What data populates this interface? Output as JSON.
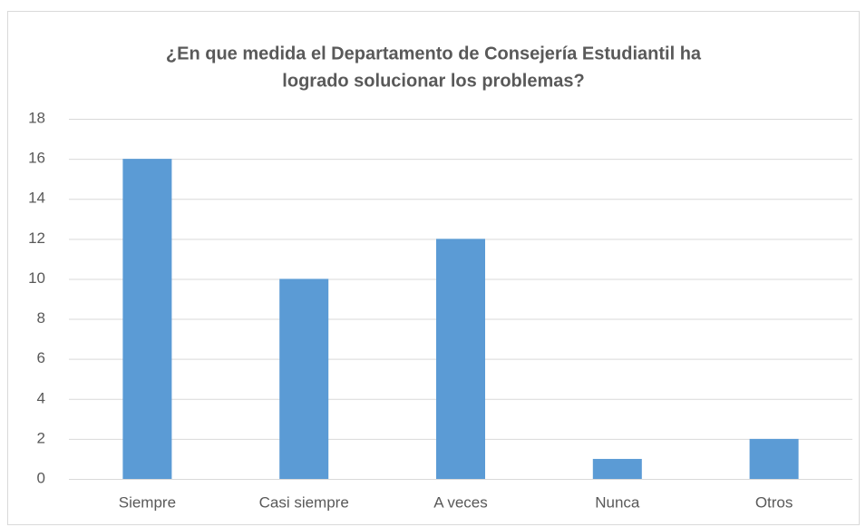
{
  "chart_data": {
    "type": "bar",
    "title": [
      "¿En que medida el Departamento de Consejería Estudiantil ha",
      "logrado solucionar los problemas?"
    ],
    "categories": [
      "Siempre",
      "Casi siempre",
      "A veces",
      "Nunca",
      "Otros"
    ],
    "values": [
      16,
      10,
      12,
      1,
      2
    ],
    "color": "#5b9bd5",
    "ylim": [
      0,
      18
    ],
    "yticks": [
      0,
      2,
      4,
      6,
      8,
      10,
      12,
      14,
      16,
      18
    ],
    "grid": true
  }
}
